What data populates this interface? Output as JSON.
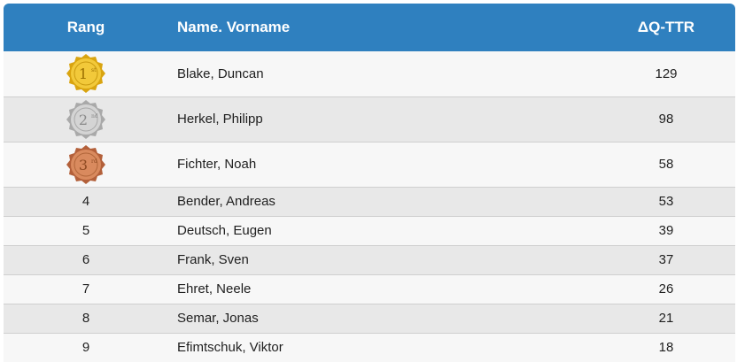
{
  "header": {
    "rank_label": "Rang",
    "name_label": "Name. Vorname",
    "value_label": "ΔQ-TTR"
  },
  "colors": {
    "header_bg": "#2f80bf",
    "row_odd": "#f7f7f7",
    "row_even": "#e8e8e8",
    "gold": "#e8b920",
    "silver": "#c3c3c3",
    "bronze": "#cf7c50"
  },
  "rows": [
    {
      "rank": "1",
      "medal": "gold-medal-icon",
      "medal_text": "1",
      "medal_suffix": "st",
      "name": "Blake, Duncan",
      "value": "129"
    },
    {
      "rank": "2",
      "medal": "silver-medal-icon",
      "medal_text": "2",
      "medal_suffix": "nd",
      "name": "Herkel, Philipp",
      "value": "98"
    },
    {
      "rank": "3",
      "medal": "bronze-medal-icon",
      "medal_text": "3",
      "medal_suffix": "rd",
      "name": "Fichter, Noah",
      "value": "58"
    },
    {
      "rank": "4",
      "name": "Bender, Andreas",
      "value": "53"
    },
    {
      "rank": "5",
      "name": "Deutsch, Eugen",
      "value": "39"
    },
    {
      "rank": "6",
      "name": "Frank, Sven",
      "value": "37"
    },
    {
      "rank": "7",
      "name": "Ehret, Neele",
      "value": "26"
    },
    {
      "rank": "8",
      "name": "Semar, Jonas",
      "value": "21"
    },
    {
      "rank": "9",
      "name": "Efimtschuk, Viktor",
      "value": "18"
    }
  ]
}
